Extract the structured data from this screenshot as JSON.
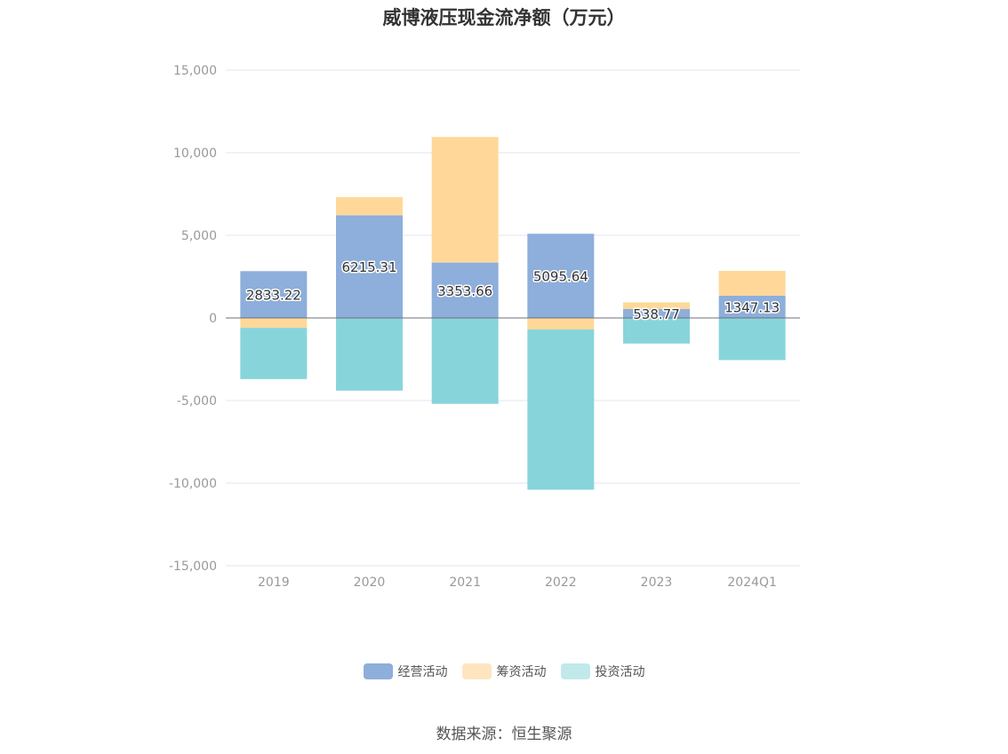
{
  "chart_data": {
    "type": "bar",
    "stacked": true,
    "title": "威博液压现金流净额（万元）",
    "categories": [
      "2019",
      "2020",
      "2021",
      "2022",
      "2023",
      "2024Q1"
    ],
    "series": [
      {
        "name": "经营活动",
        "color": "#8eaedb",
        "values": [
          2833.22,
          6215.31,
          3353.66,
          5095.64,
          538.77,
          1347.13
        ],
        "labels": [
          "2833.22",
          "6215.31",
          "3353.66",
          "5095.64",
          "538.77",
          "1347.13"
        ]
      },
      {
        "name": "筹资活动",
        "color": "#ffd899",
        "values": [
          -600,
          1100,
          7600,
          -700,
          400,
          1500
        ]
      },
      {
        "name": "投资活动",
        "color": "#87d5da",
        "values": [
          -3100,
          -4400,
          -5200,
          -9700,
          -1550,
          -2550
        ]
      }
    ],
    "ylim": [
      -15000,
      15000
    ],
    "yticks": [
      15000,
      10000,
      5000,
      0,
      -5000,
      -10000,
      -15000
    ],
    "ytick_labels": [
      "15,000",
      "10,000",
      "5,000",
      "0",
      "-5,000",
      "-10,000",
      "-15,000"
    ],
    "grid": true,
    "legend_position": "bottom",
    "legend_colors": [
      "#8eaedb",
      "#fee5c0",
      "#c1e9ec"
    ]
  },
  "source": "数据来源：恒生聚源"
}
